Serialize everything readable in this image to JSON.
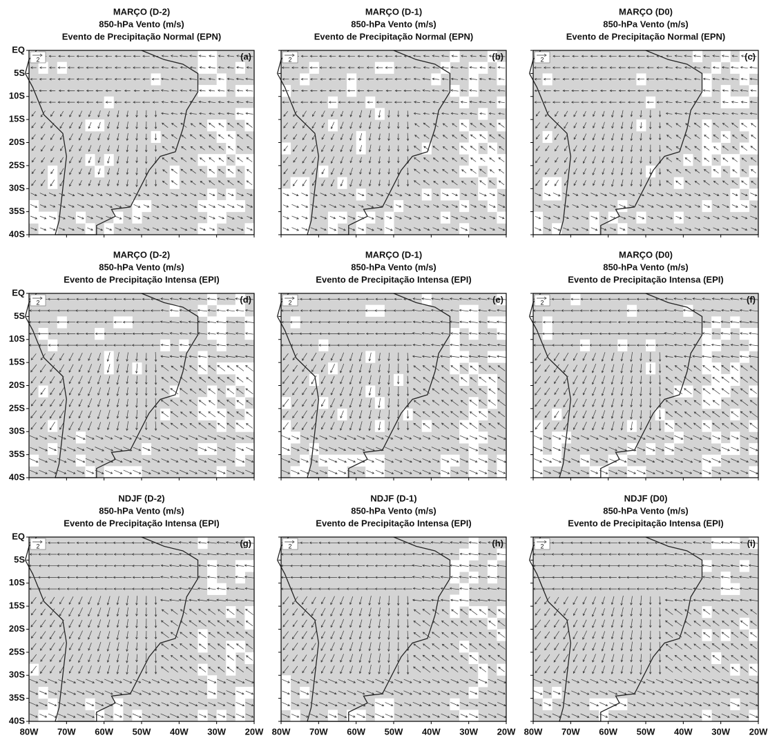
{
  "y_axis_labels": [
    "EQ",
    "5S",
    "10S",
    "15S",
    "20S",
    "25S",
    "30S",
    "35S",
    "40S"
  ],
  "x_axis_labels": [
    "80W",
    "70W",
    "60W",
    "50W",
    "40W",
    "30W",
    "20W"
  ],
  "reference_vector": "2",
  "panels": [
    {
      "title": [
        "MARÇO (D-2)",
        "850-hPa Vento (m/s)",
        "Evento de Precipitação Normal (EPN)"
      ],
      "label": "(a)"
    },
    {
      "title": [
        "MARÇO (D-1)",
        "850-hPa Vento (m/s)",
        "Evento de Precipitação Normal (EPN)"
      ],
      "label": "(b)"
    },
    {
      "title": [
        "MARÇO (D0)",
        "850-hPa Vento (m/s)",
        "Evento de Precipitação Normal (EPN)"
      ],
      "label": "(c)"
    },
    {
      "title": [
        "MARÇO (D-2)",
        "850-hPa Vento (m/s)",
        "Evento de Precipitação Intensa (EPI)"
      ],
      "label": "(d)"
    },
    {
      "title": [
        "MARÇO (D-1)",
        "850-hPa Vento (m/s)",
        "Evento de Precipitação Intensa (EPI)"
      ],
      "label": "(e)"
    },
    {
      "title": [
        "MARÇO (D0)",
        "850-hPa Vento (m/s)",
        "Evento de Precipitação Intensa (EPI)"
      ],
      "label": "(f)"
    },
    {
      "title": [
        "NDJF  (D-2)",
        "850-hPa Vento (m/s)",
        "Evento de Precipitação Intensa (EPI)"
      ],
      "label": "(g)"
    },
    {
      "title": [
        "NDJF  (D-1)",
        "850-hPa Vento (m/s)",
        "Evento de Precipitação Intensa (EPI)"
      ],
      "label": "(h)"
    },
    {
      "title": [
        "NDJF  (D0)",
        "850-hPa Vento (m/s)",
        "Evento de Precipitação Intensa (EPI)"
      ],
      "label": "(i)"
    }
  ]
}
